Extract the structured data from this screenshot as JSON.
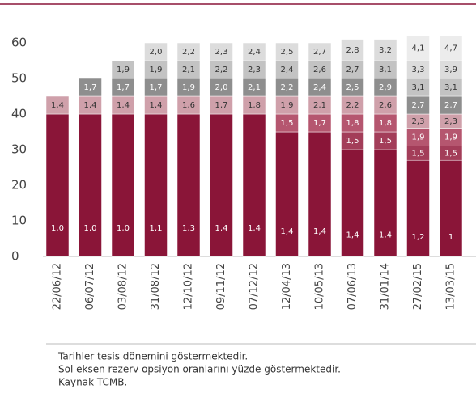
{
  "chart_data": {
    "type": "stacked_bar",
    "categories": [
      "22/06/12",
      "06/07/12",
      "03/08/12",
      "31/08/12",
      "12/10/12",
      "09/11/12",
      "07/12/12",
      "12/04/13",
      "10/05/13",
      "07/06/13",
      "31/01/14",
      "27/02/15",
      "13/03/15"
    ],
    "ylim": [
      0,
      60
    ],
    "yticks": [
      0,
      10,
      20,
      30,
      40,
      50,
      60
    ],
    "stacks": [
      {
        "values": [
          40,
          5
        ],
        "value_labels": [
          "1,0",
          "1,4"
        ],
        "colors": [
          "#8a1538",
          "#cfa0aa"
        ]
      },
      {
        "values": [
          40,
          5,
          5
        ],
        "value_labels": [
          "1,0",
          "1,4",
          "1,7"
        ],
        "colors": [
          "#8a1538",
          "#cfa0aa",
          "#8e8e8e"
        ]
      },
      {
        "values": [
          40,
          5,
          5,
          5
        ],
        "value_labels": [
          "1,0",
          "1,4",
          "1,7",
          "1,9"
        ],
        "colors": [
          "#8a1538",
          "#cfa0aa",
          "#8e8e8e",
          "#c3c3c3"
        ]
      },
      {
        "values": [
          40,
          5,
          5,
          5,
          5
        ],
        "value_labels": [
          "1,1",
          "1,4",
          "1,7",
          "1,9",
          "2,0"
        ],
        "colors": [
          "#8a1538",
          "#cfa0aa",
          "#8e8e8e",
          "#c3c3c3",
          "#dcdcdc"
        ]
      },
      {
        "values": [
          40,
          5,
          5,
          5,
          5
        ],
        "value_labels": [
          "1,3",
          "1,6",
          "1,9",
          "2,1",
          "2,2"
        ],
        "colors": [
          "#8a1538",
          "#cfa0aa",
          "#8e8e8e",
          "#c3c3c3",
          "#dcdcdc"
        ]
      },
      {
        "values": [
          40,
          5,
          5,
          5,
          5
        ],
        "value_labels": [
          "1,4",
          "1,7",
          "2,0",
          "2,2",
          "2,3"
        ],
        "colors": [
          "#8a1538",
          "#cfa0aa",
          "#8e8e8e",
          "#c3c3c3",
          "#dcdcdc"
        ]
      },
      {
        "values": [
          40,
          5,
          5,
          5,
          5
        ],
        "value_labels": [
          "1,4",
          "1,8",
          "2,1",
          "2,3",
          "2,4"
        ],
        "colors": [
          "#8a1538",
          "#cfa0aa",
          "#8e8e8e",
          "#c3c3c3",
          "#dcdcdc"
        ]
      },
      {
        "values": [
          35,
          5,
          5,
          5,
          5,
          5
        ],
        "value_labels": [
          "1,4",
          "1,5",
          "1,9",
          "2,2",
          "2,4",
          "2,5"
        ],
        "colors": [
          "#8a1538",
          "#b5566f",
          "#cfa0aa",
          "#8e8e8e",
          "#c3c3c3",
          "#dcdcdc"
        ]
      },
      {
        "values": [
          35,
          5,
          5,
          5,
          5,
          5
        ],
        "value_labels": [
          "1,4",
          "1,7",
          "2,1",
          "2,4",
          "2,6",
          "2,7"
        ],
        "colors": [
          "#8a1538",
          "#b5566f",
          "#cfa0aa",
          "#8e8e8e",
          "#c3c3c3",
          "#dcdcdc"
        ]
      },
      {
        "values": [
          30,
          5,
          5,
          5,
          5,
          5,
          6
        ],
        "value_labels": [
          "1,4",
          "1,5",
          "1,8",
          "2,2",
          "2,5",
          "2,7",
          "2,8"
        ],
        "colors": [
          "#8a1538",
          "#a33d59",
          "#b5566f",
          "#cfa0aa",
          "#8e8e8e",
          "#c3c3c3",
          "#dcdcdc"
        ]
      },
      {
        "values": [
          30,
          5,
          5,
          5,
          5,
          5,
          6
        ],
        "value_labels": [
          "1,4",
          "1,5",
          "1,8",
          "2,6",
          "2,9",
          "3,1",
          "3,2"
        ],
        "colors": [
          "#8a1538",
          "#a33d59",
          "#b5566f",
          "#cfa0aa",
          "#8e8e8e",
          "#c3c3c3",
          "#dcdcdc"
        ]
      },
      {
        "values": [
          27,
          4,
          5,
          4,
          5,
          5,
          5,
          7
        ],
        "value_labels": [
          "1,2",
          "1,5",
          "1,9",
          "2,3",
          "2,7",
          "3,1",
          "3,3",
          "4,1"
        ],
        "colors": [
          "#8a1538",
          "#a33d59",
          "#b5566f",
          "#cfa0aa",
          "#8e8e8e",
          "#c3c3c3",
          "#dcdcdc",
          "#ececec"
        ]
      },
      {
        "values": [
          27,
          4,
          5,
          4,
          5,
          5,
          5,
          7
        ],
        "value_labels": [
          "1",
          "1,5",
          "1,9",
          "2,3",
          "2,7",
          "3,1",
          "3,9",
          "4,7"
        ],
        "colors": [
          "#8a1538",
          "#a33d59",
          "#b5566f",
          "#cfa0aa",
          "#8e8e8e",
          "#c3c3c3",
          "#dcdcdc",
          "#ececec"
        ]
      }
    ],
    "notes": [
      "Tarihler tesis dönemini göstermektedir.",
      "Sol eksen rezerv opsiyon oranlarını yüzde göstermektedir.",
      "Kaynak TCMB."
    ]
  }
}
